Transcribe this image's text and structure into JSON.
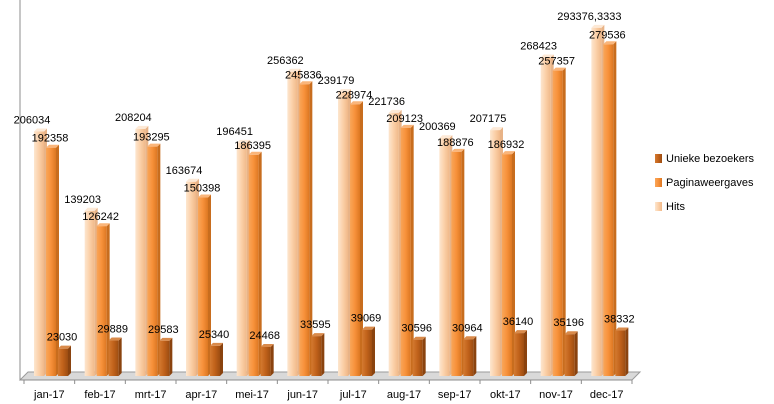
{
  "chart_data": {
    "type": "bar",
    "title": "",
    "xlabel": "",
    "ylabel": "",
    "ylim": [
      0,
      300000
    ],
    "grid": false,
    "legend": "right",
    "categories": [
      "jan-17",
      "feb-17",
      "mrt-17",
      "apr-17",
      "mei-17",
      "jun-17",
      "jul-17",
      "aug-17",
      "sep-17",
      "okt-17",
      "nov-17",
      "dec-17"
    ],
    "series": [
      {
        "name": "Hits",
        "color": "#fbd0a8",
        "values": [
          206034,
          139203,
          208204,
          163674,
          196451,
          256362,
          239179,
          221736,
          200369,
          207175,
          268423,
          293376.3333
        ],
        "labels": [
          "206034",
          "139203",
          "208204",
          "163674",
          "196451",
          "256362",
          "239179",
          "221736",
          "200369",
          "207175",
          "268423",
          "293376,3333"
        ]
      },
      {
        "name": "Paginaweergaves",
        "color": "#f7913a",
        "values": [
          192358,
          126242,
          193295,
          150398,
          186395,
          245836,
          228974,
          209123,
          188876,
          186932,
          257357,
          279536
        ],
        "labels": [
          "192358",
          "126242",
          "193295",
          "150398",
          "186395",
          "245836",
          "228974",
          "209123",
          "188876",
          "186932",
          "257357",
          "279536"
        ]
      },
      {
        "name": "Unieke bezoekers",
        "color": "#c0611a",
        "values": [
          23030,
          29889,
          29583,
          25340,
          24468,
          33595,
          39069,
          30596,
          30964,
          36140,
          35196,
          38332
        ],
        "labels": [
          "23030",
          "29889",
          "29583",
          "25340",
          "24468",
          "33595",
          "39069",
          "30596",
          "30964",
          "36140",
          "35196",
          "38332"
        ]
      }
    ]
  }
}
